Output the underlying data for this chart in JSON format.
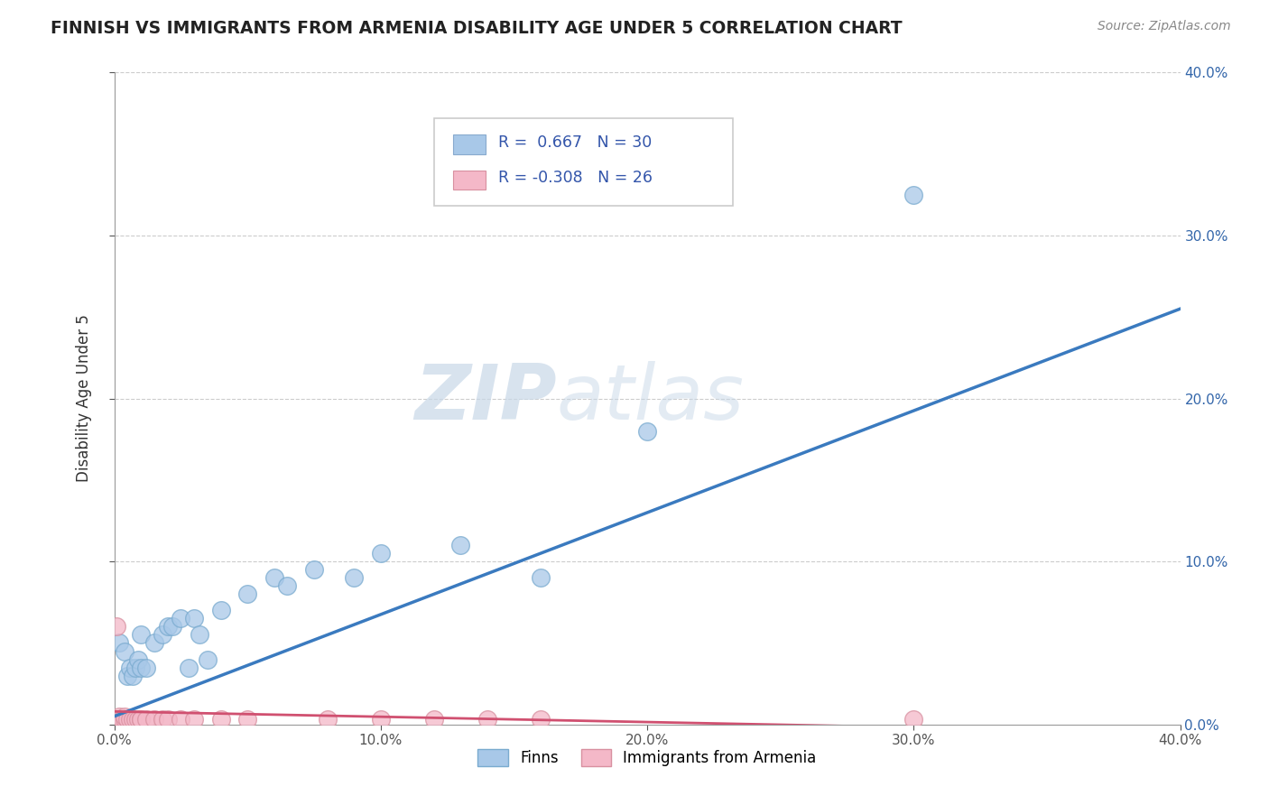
{
  "title": "FINNISH VS IMMIGRANTS FROM ARMENIA DISABILITY AGE UNDER 5 CORRELATION CHART",
  "source": "Source: ZipAtlas.com",
  "ylabel": "Disability Age Under 5",
  "legend_finn": "Finns",
  "legend_armenia": "Immigrants from Armenia",
  "xlim": [
    0.0,
    0.4
  ],
  "ylim": [
    0.0,
    0.4
  ],
  "x_ticks": [
    0.0,
    0.1,
    0.2,
    0.3,
    0.4
  ],
  "y_ticks": [
    0.0,
    0.1,
    0.2,
    0.3,
    0.4
  ],
  "r_finn": 0.667,
  "n_finn": 30,
  "r_armenia": -0.308,
  "n_armenia": 26,
  "finn_color": "#a8c8e8",
  "armenia_color": "#f4b8c8",
  "finn_line_color": "#3a7abf",
  "armenia_line_color": "#d05070",
  "watermark_color": "#c8d8e8",
  "finn_line_x0": 0.0,
  "finn_line_y0": 0.005,
  "finn_line_x1": 0.4,
  "finn_line_y1": 0.255,
  "armenia_line_x0": 0.0,
  "armenia_line_y0": 0.008,
  "armenia_line_x1": 0.4,
  "armenia_line_y1": -0.005,
  "finn_scatter_x": [
    0.002,
    0.004,
    0.005,
    0.006,
    0.007,
    0.008,
    0.009,
    0.01,
    0.01,
    0.012,
    0.015,
    0.018,
    0.02,
    0.022,
    0.025,
    0.028,
    0.03,
    0.032,
    0.035,
    0.04,
    0.05,
    0.06,
    0.065,
    0.075,
    0.09,
    0.1,
    0.13,
    0.16,
    0.2,
    0.3
  ],
  "finn_scatter_y": [
    0.05,
    0.045,
    0.03,
    0.035,
    0.03,
    0.035,
    0.04,
    0.035,
    0.055,
    0.035,
    0.05,
    0.055,
    0.06,
    0.06,
    0.065,
    0.035,
    0.065,
    0.055,
    0.04,
    0.07,
    0.08,
    0.09,
    0.085,
    0.095,
    0.09,
    0.105,
    0.11,
    0.09,
    0.18,
    0.325
  ],
  "armenia_scatter_x": [
    0.001,
    0.002,
    0.003,
    0.004,
    0.004,
    0.005,
    0.006,
    0.007,
    0.008,
    0.009,
    0.01,
    0.01,
    0.012,
    0.015,
    0.018,
    0.02,
    0.025,
    0.03,
    0.04,
    0.05,
    0.08,
    0.1,
    0.12,
    0.14,
    0.16,
    0.3
  ],
  "armenia_scatter_y": [
    0.06,
    0.005,
    0.003,
    0.003,
    0.005,
    0.003,
    0.003,
    0.003,
    0.003,
    0.003,
    0.003,
    0.003,
    0.003,
    0.003,
    0.003,
    0.003,
    0.003,
    0.003,
    0.003,
    0.003,
    0.003,
    0.003,
    0.003,
    0.003,
    0.003,
    0.003
  ]
}
